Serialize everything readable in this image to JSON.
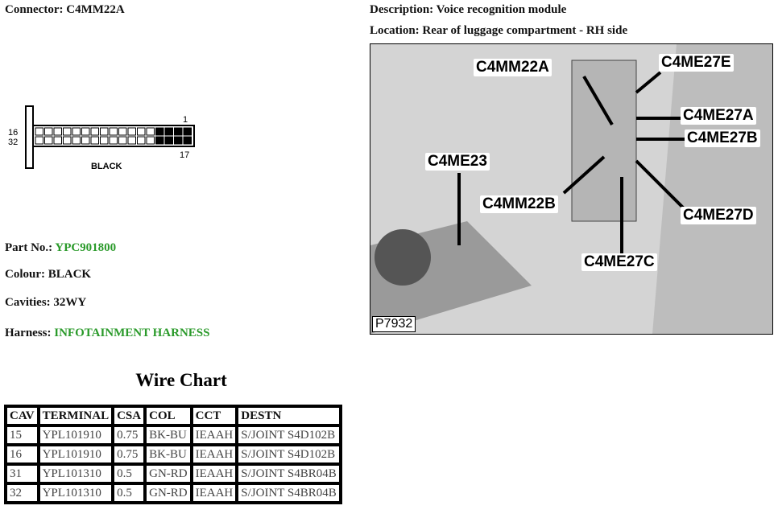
{
  "connector": {
    "label": "Connector:",
    "value": "C4MM22A"
  },
  "description": {
    "label": "Description:",
    "value": "Voice recognition module"
  },
  "location": {
    "label": "Location:",
    "value": "Rear of luggage compartment - RH side"
  },
  "diagram": {
    "pin_top_left": "16",
    "pin_bottom_left": "32",
    "pin_top_right": "1",
    "pin_bottom_right": "17",
    "colour": "BLACK"
  },
  "part": {
    "label": "Part No.:",
    "value": "YPC901800"
  },
  "colour": {
    "label": "Colour:",
    "value": "BLACK"
  },
  "cavities": {
    "label": "Cavities:",
    "value": "32WY"
  },
  "harness": {
    "label": "Harness:",
    "value": "INFOTAINMENT HARNESS"
  },
  "accent": "#2a9a2a",
  "photo": {
    "id": "P7932",
    "labels": [
      "C4MM22A",
      "C4ME27E",
      "C4ME27A",
      "C4ME27B",
      "C4ME23",
      "C4MM22B",
      "C4ME27D",
      "C4ME27C"
    ]
  },
  "wire_chart": {
    "title": "Wire Chart",
    "headers": [
      "CAV",
      "TERMINAL",
      "CSA",
      "COL",
      "CCT",
      "DESTN"
    ],
    "rows": [
      [
        "15",
        "YPL101910",
        "0.75",
        "BK-BU",
        "IEAAH",
        "S/JOINT S4D102B"
      ],
      [
        "16",
        "YPL101910",
        "0.75",
        "BK-BU",
        "IEAAH",
        "S/JOINT S4D102B"
      ],
      [
        "31",
        "YPL101310",
        "0.5",
        "GN-RD",
        "IEAAH",
        "S/JOINT S4BR04B"
      ],
      [
        "32",
        "YPL101310",
        "0.5",
        "GN-RD",
        "IEAAH",
        "S/JOINT S4BR04B"
      ]
    ]
  }
}
